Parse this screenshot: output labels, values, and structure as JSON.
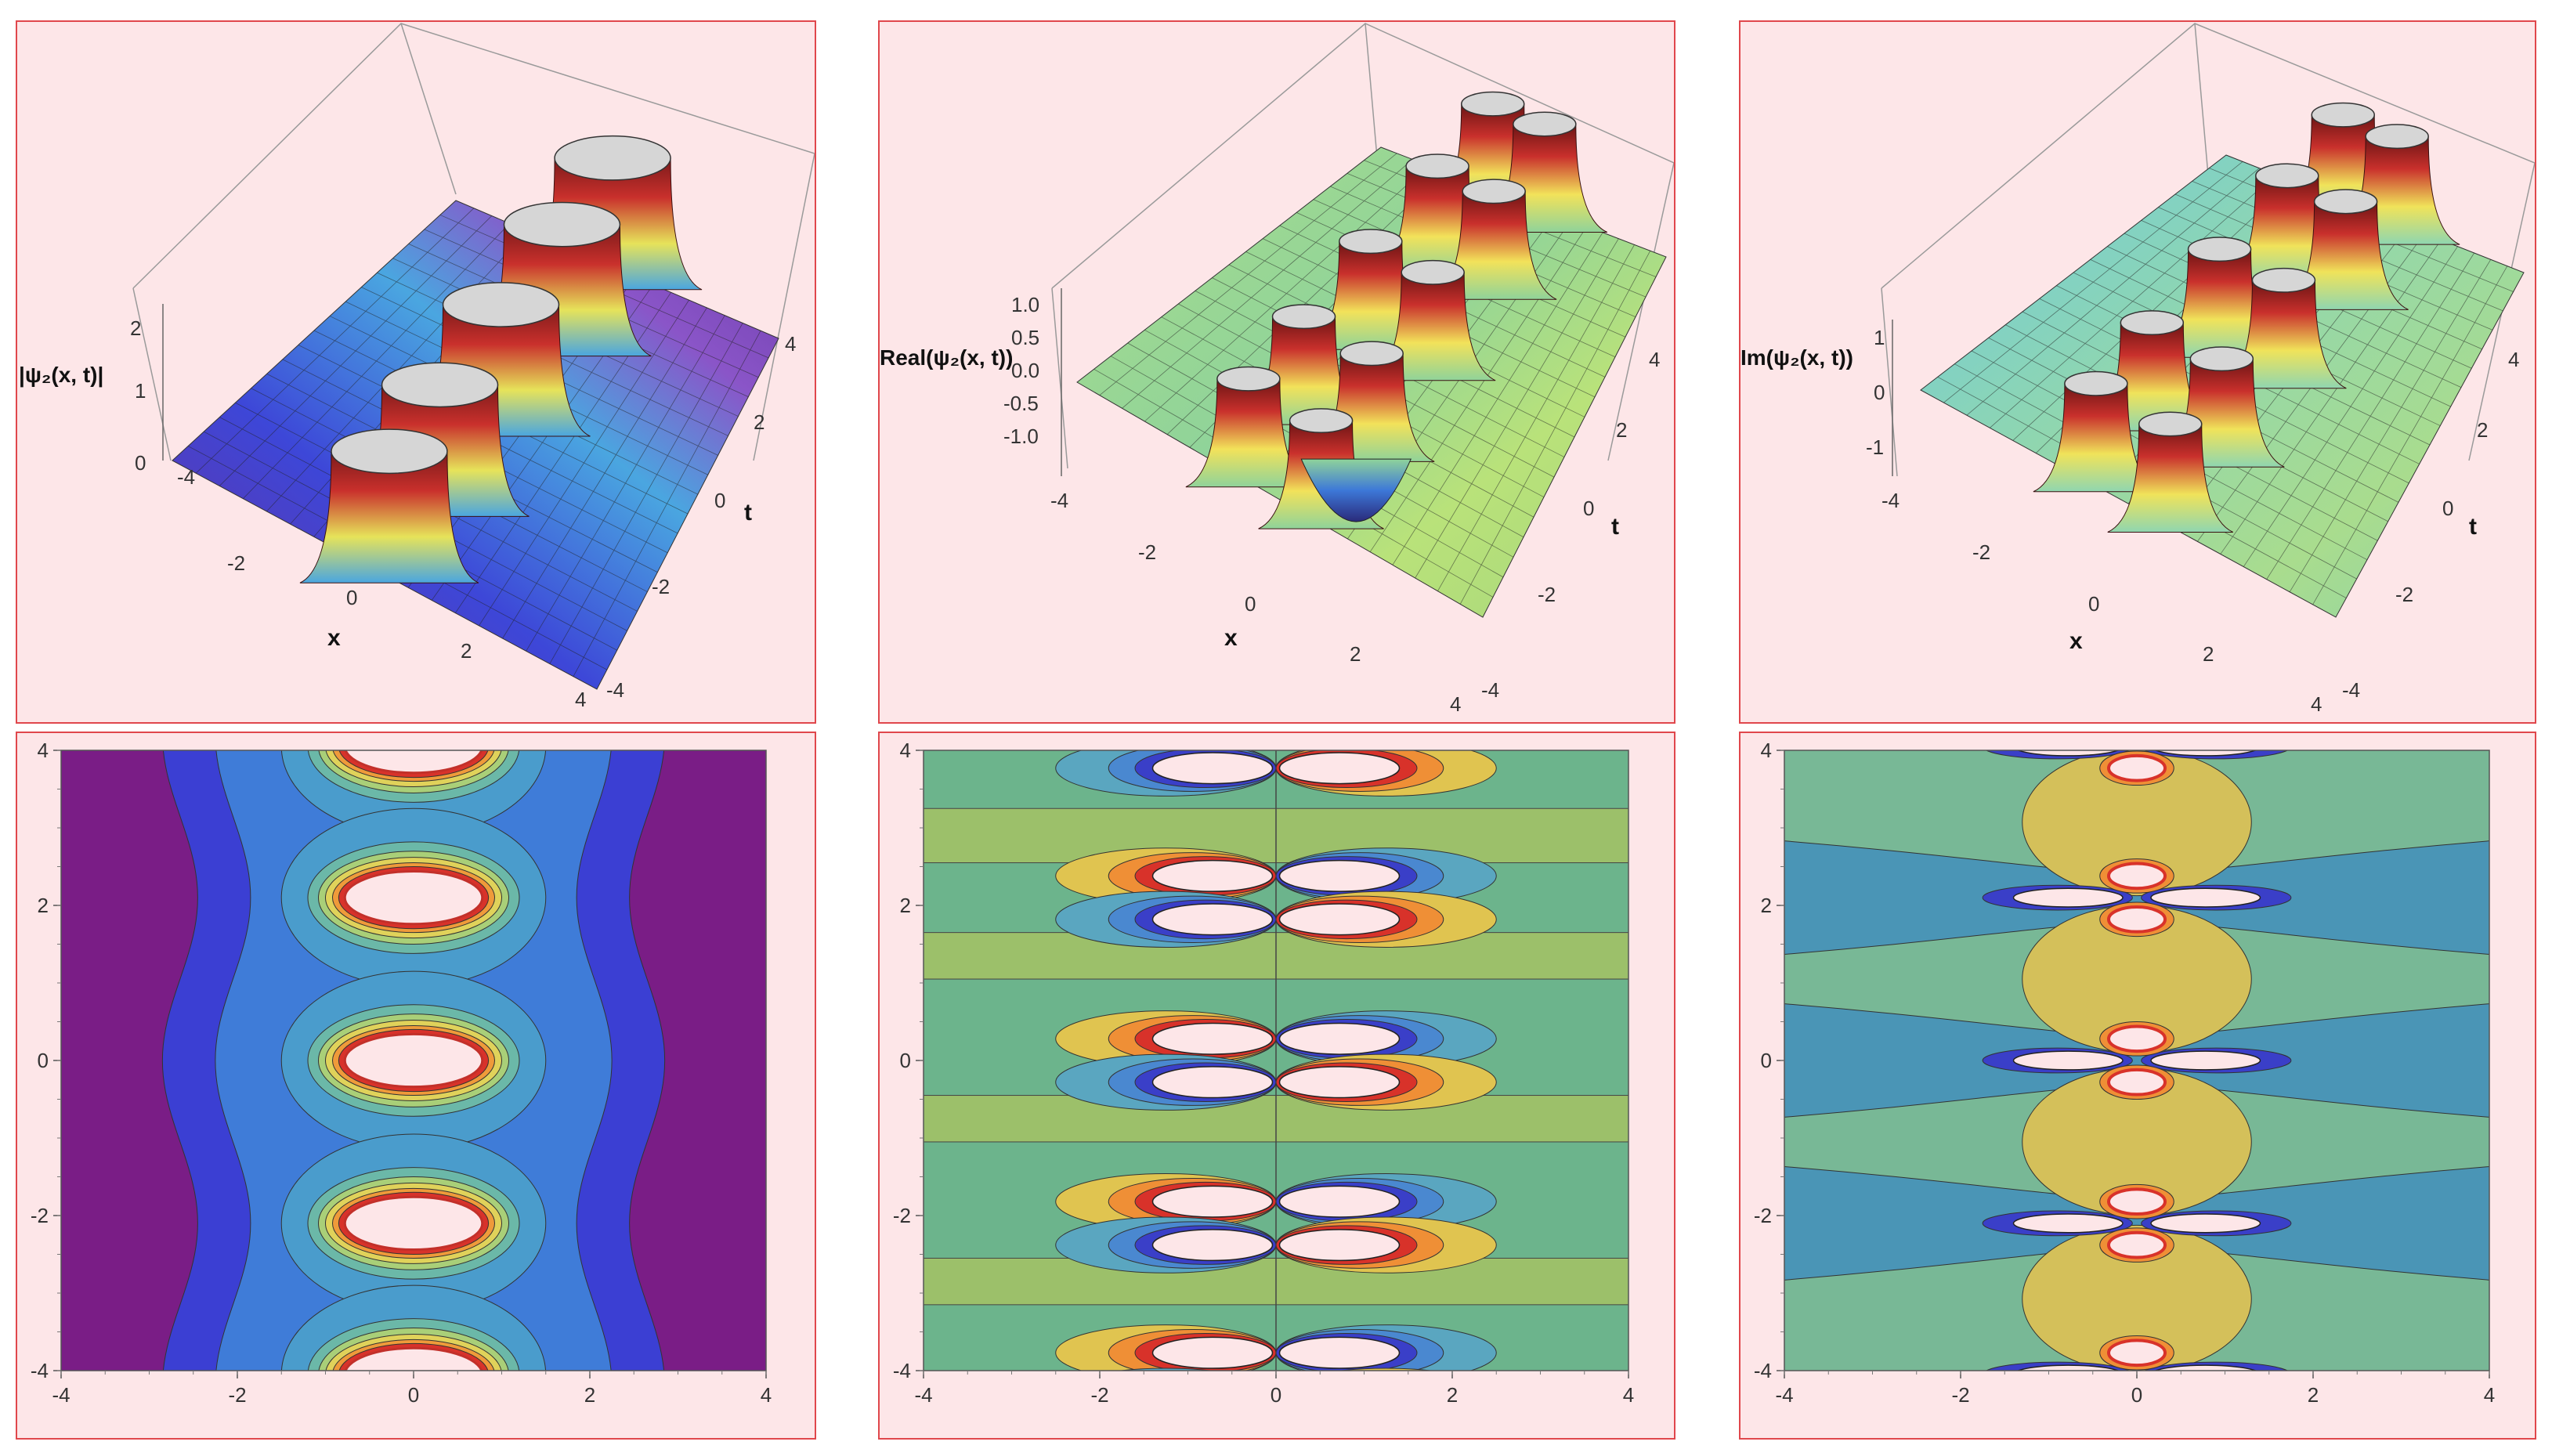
{
  "chart_data": [
    {
      "type": "surface",
      "panel": "abs-3d",
      "zlabel": "|ψ₂(x, t)|",
      "xlabel": "x",
      "ylabel": "t",
      "x_ticks": [
        "-4",
        "-2",
        "0",
        "2",
        "4"
      ],
      "t_ticks": [
        "-4",
        "-2",
        "0",
        "2",
        "4"
      ],
      "z_ticks": [
        "0",
        "1",
        "2"
      ],
      "xlim": [
        -4,
        4
      ],
      "tlim": [
        -4,
        4
      ],
      "zlim": [
        0,
        2.4
      ],
      "peaks_t": [
        -4,
        -2.1,
        0,
        2.1,
        4
      ],
      "peak_x": 0,
      "colors": [
        "#6b2f9c",
        "#3d47d8",
        "#4aa6e0",
        "#e6e35a",
        "#c9302c"
      ]
    },
    {
      "type": "surface",
      "panel": "real-3d",
      "zlabel": "Real(ψ₂(x, t))",
      "xlabel": "x",
      "ylabel": "t",
      "x_ticks": [
        "-4",
        "-2",
        "0",
        "2",
        "4"
      ],
      "t_ticks": [
        "-4",
        "-2",
        "0",
        "2",
        "4"
      ],
      "z_ticks": [
        "1.0",
        "0.5",
        "0.0",
        "-0.5",
        "-1.0"
      ],
      "xlim": [
        -4,
        4
      ],
      "tlim": [
        -4,
        4
      ],
      "zlim": [
        -1.2,
        1.2
      ],
      "colors": [
        "#2a2a7a",
        "#3d78d8",
        "#8fd39a",
        "#f2e25a",
        "#c9302c"
      ]
    },
    {
      "type": "surface",
      "panel": "imag-3d",
      "zlabel": "Im(ψ₂(x, t))",
      "xlabel": "x",
      "ylabel": "t",
      "x_ticks": [
        "-4",
        "-2",
        "0",
        "2",
        "4"
      ],
      "t_ticks": [
        "-4",
        "-2",
        "0",
        "2",
        "4"
      ],
      "z_ticks": [
        "1",
        "0",
        "-1"
      ],
      "xlim": [
        -4,
        4
      ],
      "tlim": [
        -4,
        4
      ],
      "zlim": [
        -1.4,
        1.4
      ],
      "colors": [
        "#3aa6d9",
        "#8fd6b0",
        "#f0e35a",
        "#e88a2a",
        "#c9302c"
      ]
    },
    {
      "type": "contour",
      "panel": "abs-contour",
      "x_ticks": [
        "-4",
        "-2",
        "0",
        "2",
        "4"
      ],
      "y_ticks": [
        "-4",
        "-2",
        "0",
        "2",
        "4"
      ],
      "xlim": [
        -4,
        4
      ],
      "ylim": [
        -4,
        4
      ],
      "background": "#7a1d86",
      "bands": [
        "#3b3fd3",
        "#3f7cd8",
        "#4a9ccc",
        "#6bb8a8",
        "#a9cf78",
        "#e0d25a",
        "#ef9a3a",
        "#d8322a"
      ],
      "peak_centers": [
        [
          0,
          4.05
        ],
        [
          0,
          2.1
        ],
        [
          0,
          0
        ],
        [
          0,
          -2.1
        ],
        [
          0,
          -4.05
        ]
      ]
    },
    {
      "type": "contour",
      "panel": "real-contour",
      "x_ticks": [
        "-4",
        "-2",
        "0",
        "2",
        "4"
      ],
      "y_ticks": [
        "-4",
        "-2",
        "0",
        "2",
        "4"
      ],
      "xlim": [
        -4,
        4
      ],
      "ylim": [
        -4,
        4
      ],
      "background_bands": [
        "#6cb48c",
        "#9cc06a"
      ],
      "lobe_colors": [
        "#e0c450",
        "#ef8f36",
        "#d8322a",
        "#3a3fc8",
        "#4a88d0",
        "#5aa6c0"
      ],
      "lobe_centers_t": [
        -4.05,
        -2.1,
        0,
        2.1,
        4.05
      ]
    },
    {
      "type": "contour",
      "panel": "imag-contour",
      "x_ticks": [
        "-4",
        "-2",
        "0",
        "2",
        "4"
      ],
      "y_ticks": [
        "-4",
        "-2",
        "0",
        "2",
        "4"
      ],
      "xlim": [
        -4,
        4
      ],
      "ylim": [
        -4,
        4
      ],
      "background_bands": [
        "#78b896",
        "#4a95b6"
      ],
      "central_band": "#d4c05a",
      "lobe_colors": [
        "#ef8f36",
        "#d8322a",
        "#3a3fc8",
        "#7a2ea0"
      ],
      "lobe_centers_t": [
        -4.05,
        -2.1,
        0,
        2.1,
        4.05
      ]
    }
  ]
}
